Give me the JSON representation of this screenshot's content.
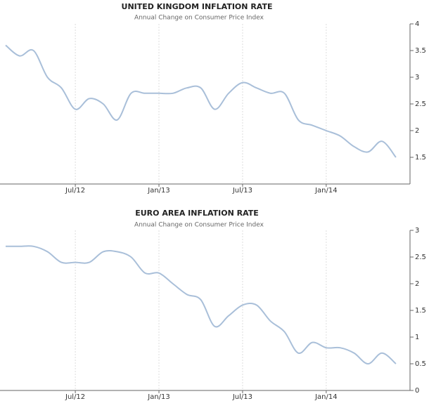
{
  "chart_data": [
    {
      "type": "line",
      "title": "UNITED KINGDOM INFLATION RATE",
      "subtitle": "Annual Change on Consumer Price Index",
      "x": [
        "Feb/12",
        "Mar/12",
        "Apr/12",
        "May/12",
        "Jun/12",
        "Jul/12",
        "Aug/12",
        "Sep/12",
        "Oct/12",
        "Nov/12",
        "Dec/12",
        "Jan/13",
        "Feb/13",
        "Mar/13",
        "Apr/13",
        "May/13",
        "Jun/13",
        "Jul/13",
        "Aug/13",
        "Sep/13",
        "Oct/13",
        "Nov/13",
        "Dec/13",
        "Jan/14",
        "Feb/14",
        "Mar/14",
        "Apr/14",
        "May/14",
        "Jun/14"
      ],
      "series": [
        {
          "color": "#a9bfd9",
          "values": [
            3.6,
            3.4,
            3.5,
            3.0,
            2.8,
            2.4,
            2.6,
            2.5,
            2.2,
            2.7,
            2.7,
            2.7,
            2.7,
            2.8,
            2.8,
            2.4,
            2.7,
            2.9,
            2.8,
            2.7,
            2.7,
            2.2,
            2.1,
            2.0,
            1.9,
            1.7,
            1.6,
            1.8,
            1.5
          ]
        }
      ],
      "xticks": [
        "Jul/12",
        "Jan/13",
        "Jul/13",
        "Jan/14"
      ],
      "ylim": [
        1,
        4
      ],
      "yticks": [
        1.5,
        2,
        2.5,
        3,
        3.5,
        4
      ]
    },
    {
      "type": "line",
      "title": "EURO AREA INFLATION RATE",
      "subtitle": "Annual Change on Consumer Price Index",
      "x": [
        "Feb/12",
        "Mar/12",
        "Apr/12",
        "May/12",
        "Jun/12",
        "Jul/12",
        "Aug/12",
        "Sep/12",
        "Oct/12",
        "Nov/12",
        "Dec/12",
        "Jan/13",
        "Feb/13",
        "Mar/13",
        "Apr/13",
        "May/13",
        "Jun/13",
        "Jul/13",
        "Aug/13",
        "Sep/13",
        "Oct/13",
        "Nov/13",
        "Dec/13",
        "Jan/14",
        "Feb/14",
        "Mar/14",
        "Apr/14",
        "May/14",
        "Jun/14"
      ],
      "series": [
        {
          "color": "#a9bfd9",
          "values": [
            2.7,
            2.7,
            2.7,
            2.6,
            2.4,
            2.4,
            2.4,
            2.6,
            2.6,
            2.5,
            2.2,
            2.2,
            2.0,
            1.8,
            1.7,
            1.2,
            1.4,
            1.6,
            1.6,
            1.3,
            1.1,
            0.7,
            0.9,
            0.8,
            0.8,
            0.7,
            0.5,
            0.7,
            0.5
          ]
        }
      ],
      "xticks": [
        "Jul/12",
        "Jan/13",
        "Jul/13",
        "Jan/14"
      ],
      "ylim": [
        0,
        3
      ],
      "yticks": [
        0,
        0.5,
        1,
        1.5,
        2,
        2.5,
        3
      ]
    }
  ]
}
